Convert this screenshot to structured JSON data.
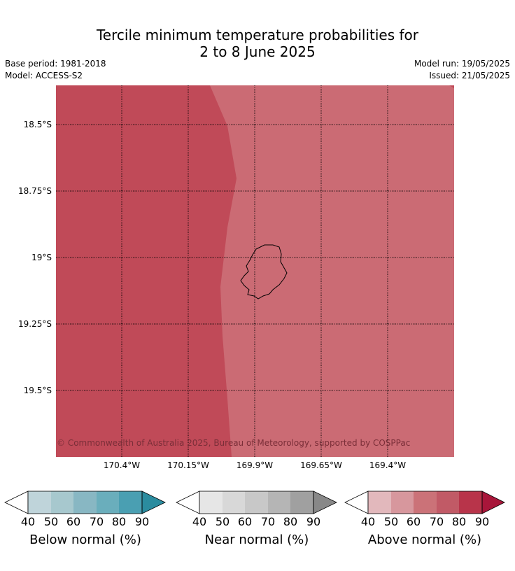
{
  "title_line1": "Tercile minimum temperature probabilities for",
  "title_line2": "2 to 8 June 2025",
  "base_period": "Base period: 1981-2018",
  "model": "Model: ACCESS-S2",
  "model_run": "Model run: 19/05/2025",
  "issued": "Issued: 21/05/2025",
  "copyright": "© Commonwealth of Australia 2025, Bureau of Meteorology, supported by COSPPac",
  "lat_labels": [
    "18.5°S",
    "18.75°S",
    "19°S",
    "19.25°S",
    "19.5°S"
  ],
  "lon_labels": [
    "170.4°W",
    "170.15°W",
    "169.9°W",
    "169.65°W",
    "169.4°W"
  ],
  "colorbars": [
    {
      "label": "Below normal (%)",
      "ticks": [
        "40",
        "50",
        "60",
        "70",
        "80",
        "90"
      ],
      "colors": [
        "#bfd4da",
        "#a7c8ce",
        "#88b7c3",
        "#6aaebc",
        "#4a9fb2",
        "#2b8c9f"
      ]
    },
    {
      "label": "Near normal (%)",
      "ticks": [
        "40",
        "50",
        "60",
        "70",
        "80",
        "90"
      ],
      "colors": [
        "#e6e6e6",
        "#d8d8d8",
        "#c8c8c8",
        "#b5b5b5",
        "#a0a0a0",
        "#888888"
      ]
    },
    {
      "label": "Above normal (%)",
      "ticks": [
        "40",
        "50",
        "60",
        "70",
        "80",
        "90"
      ],
      "colors": [
        "#e2b8bc",
        "#d7979d",
        "#cb7278",
        "#c15a66",
        "#b8344a",
        "#a8163a"
      ]
    }
  ],
  "map_colors": {
    "above_80_90": "#c04a58",
    "above_70_80": "#cb6b74"
  }
}
